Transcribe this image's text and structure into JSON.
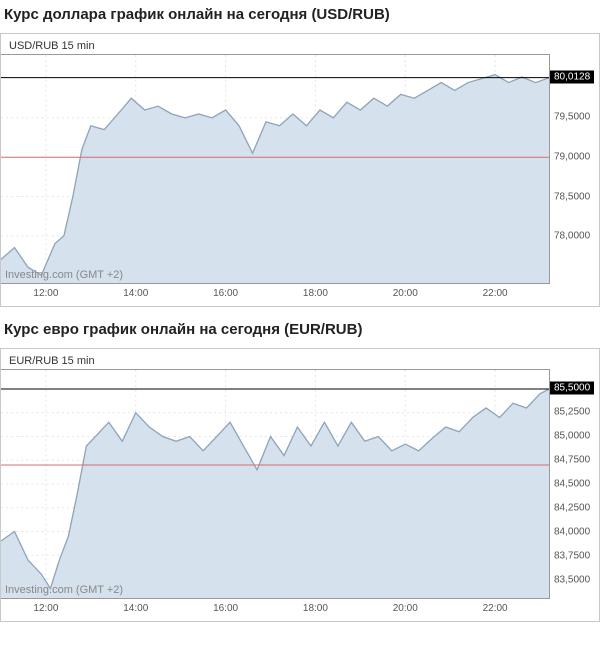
{
  "charts": [
    {
      "title": "Курс доллара график онлайн на сегодня (USD/RUB)",
      "pair_label": "USD/RUB 15 min",
      "watermark": "Investing.com (GMT +2)",
      "type": "area",
      "ylim": [
        77.4,
        80.3
      ],
      "y_ticks": [
        78.0,
        78.5,
        79.0,
        79.5
      ],
      "y_tick_labels": [
        "78,0000",
        "78,5000",
        "79,0000",
        "79,5000"
      ],
      "x_ticks": [
        12,
        14,
        16,
        18,
        20,
        22
      ],
      "x_tick_labels": [
        "12:00",
        "14:00",
        "16:00",
        "18:00",
        "20:00",
        "22:00"
      ],
      "xlim": [
        11,
        23.2
      ],
      "current_price_label": "80,0128",
      "current_price_value": 80.0128,
      "reference_line_value": 79.0,
      "line_color": "#8fa3bc",
      "area_color": "#d5e1ec",
      "current_line_color": "#000000",
      "ref_line_color": "#d96c6c",
      "grid_color": "#e5e5e5",
      "background_color": "#ffffff",
      "title_fontsize": 15,
      "label_fontsize": 10,
      "points": [
        [
          11.0,
          77.7
        ],
        [
          11.3,
          77.85
        ],
        [
          11.6,
          77.6
        ],
        [
          11.9,
          77.5
        ],
        [
          12.2,
          77.9
        ],
        [
          12.4,
          78.0
        ],
        [
          12.6,
          78.5
        ],
        [
          12.8,
          79.1
        ],
        [
          13.0,
          79.4
        ],
        [
          13.3,
          79.35
        ],
        [
          13.6,
          79.55
        ],
        [
          13.9,
          79.75
        ],
        [
          14.2,
          79.6
        ],
        [
          14.5,
          79.65
        ],
        [
          14.8,
          79.55
        ],
        [
          15.1,
          79.5
        ],
        [
          15.4,
          79.55
        ],
        [
          15.7,
          79.5
        ],
        [
          16.0,
          79.6
        ],
        [
          16.3,
          79.4
        ],
        [
          16.6,
          79.05
        ],
        [
          16.9,
          79.45
        ],
        [
          17.2,
          79.4
        ],
        [
          17.5,
          79.55
        ],
        [
          17.8,
          79.4
        ],
        [
          18.1,
          79.6
        ],
        [
          18.4,
          79.5
        ],
        [
          18.7,
          79.7
        ],
        [
          19.0,
          79.6
        ],
        [
          19.3,
          79.75
        ],
        [
          19.6,
          79.65
        ],
        [
          19.9,
          79.8
        ],
        [
          20.2,
          79.75
        ],
        [
          20.5,
          79.85
        ],
        [
          20.8,
          79.95
        ],
        [
          21.1,
          79.85
        ],
        [
          21.4,
          79.95
        ],
        [
          21.7,
          80.0
        ],
        [
          22.0,
          80.05
        ],
        [
          22.3,
          79.95
        ],
        [
          22.6,
          80.02
        ],
        [
          22.9,
          79.95
        ],
        [
          23.2,
          80.01
        ]
      ]
    },
    {
      "title": "Курс евро график онлайн на сегодня (EUR/RUB)",
      "pair_label": "EUR/RUB 15 min",
      "watermark": "Investing.com (GMT +2)",
      "type": "area",
      "ylim": [
        83.3,
        85.7
      ],
      "y_ticks": [
        83.5,
        83.75,
        84.0,
        84.25,
        84.5,
        84.75,
        85.0,
        85.25
      ],
      "y_tick_labels": [
        "83,5000",
        "83,7500",
        "84,0000",
        "84,2500",
        "84,5000",
        "84,7500",
        "85,0000",
        "85,2500"
      ],
      "x_ticks": [
        12,
        14,
        16,
        18,
        20,
        22
      ],
      "x_tick_labels": [
        "12:00",
        "14:00",
        "16:00",
        "18:00",
        "20:00",
        "22:00"
      ],
      "xlim": [
        11,
        23.2
      ],
      "current_price_label": "85,5000",
      "current_price_value": 85.5,
      "reference_line_value": 84.7,
      "line_color": "#8fa3bc",
      "area_color": "#d5e1ec",
      "current_line_color": "#000000",
      "ref_line_color": "#d96c6c",
      "grid_color": "#e5e5e5",
      "background_color": "#ffffff",
      "title_fontsize": 15,
      "label_fontsize": 10,
      "points": [
        [
          11.0,
          83.9
        ],
        [
          11.3,
          84.0
        ],
        [
          11.6,
          83.7
        ],
        [
          11.9,
          83.55
        ],
        [
          12.1,
          83.4
        ],
        [
          12.3,
          83.7
        ],
        [
          12.5,
          83.95
        ],
        [
          12.7,
          84.4
        ],
        [
          12.9,
          84.9
        ],
        [
          13.1,
          85.0
        ],
        [
          13.4,
          85.15
        ],
        [
          13.7,
          84.95
        ],
        [
          14.0,
          85.25
        ],
        [
          14.3,
          85.1
        ],
        [
          14.6,
          85.0
        ],
        [
          14.9,
          84.95
        ],
        [
          15.2,
          85.0
        ],
        [
          15.5,
          84.85
        ],
        [
          15.8,
          85.0
        ],
        [
          16.1,
          85.15
        ],
        [
          16.4,
          84.9
        ],
        [
          16.7,
          84.65
        ],
        [
          17.0,
          85.0
        ],
        [
          17.3,
          84.8
        ],
        [
          17.6,
          85.1
        ],
        [
          17.9,
          84.9
        ],
        [
          18.2,
          85.15
        ],
        [
          18.5,
          84.9
        ],
        [
          18.8,
          85.15
        ],
        [
          19.1,
          84.95
        ],
        [
          19.4,
          85.0
        ],
        [
          19.7,
          84.85
        ],
        [
          20.0,
          84.92
        ],
        [
          20.3,
          84.85
        ],
        [
          20.6,
          84.98
        ],
        [
          20.9,
          85.1
        ],
        [
          21.2,
          85.05
        ],
        [
          21.5,
          85.2
        ],
        [
          21.8,
          85.3
        ],
        [
          22.1,
          85.2
        ],
        [
          22.4,
          85.35
        ],
        [
          22.7,
          85.3
        ],
        [
          23.0,
          85.45
        ],
        [
          23.2,
          85.5
        ]
      ]
    }
  ]
}
